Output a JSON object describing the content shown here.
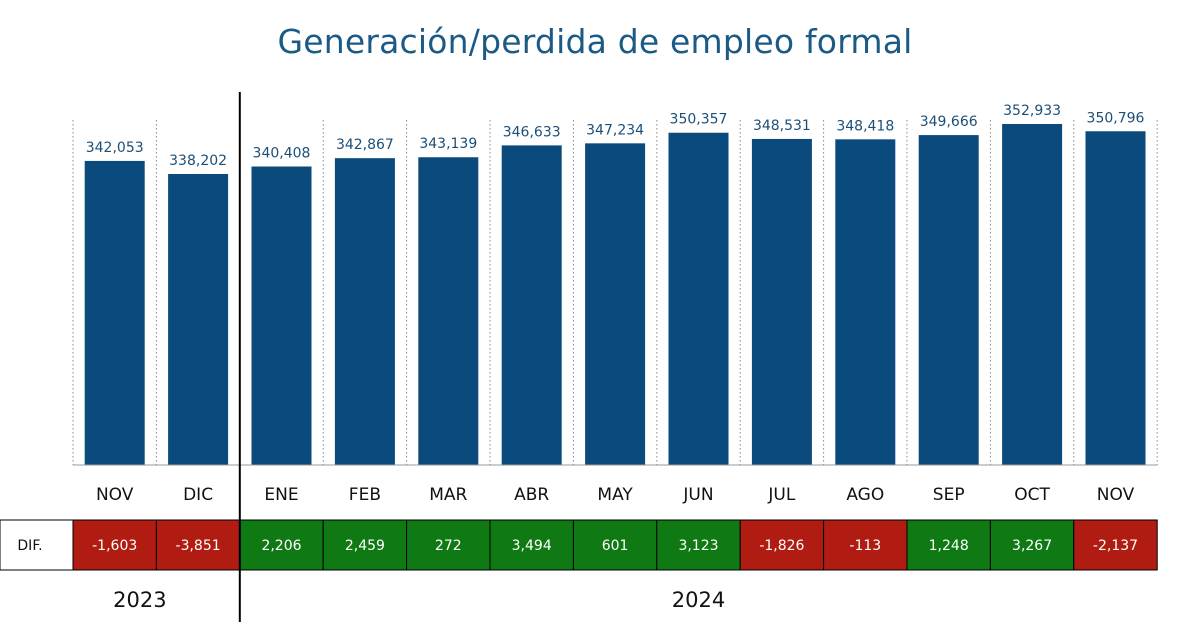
{
  "title": "Generación/perdida de empleo formal",
  "colors": {
    "bar": "#0a4a7c",
    "positive": "#0f7a14",
    "negative": "#b01c12",
    "title": "#1c5a86"
  },
  "dif_label": "DIF.",
  "years": [
    {
      "label": "2023",
      "span": 2
    },
    {
      "label": "2024",
      "span": 11
    }
  ],
  "chart_data": {
    "type": "bar",
    "title": "Generación/perdida de empleo formal",
    "categories": [
      "NOV",
      "DIC",
      "ENE",
      "FEB",
      "MAR",
      "ABR",
      "MAY",
      "JUN",
      "JUL",
      "AGO",
      "SEP",
      "OCT",
      "NOV"
    ],
    "values": [
      342053,
      338202,
      340408,
      342867,
      343139,
      346633,
      347234,
      350357,
      348531,
      348418,
      349666,
      352933,
      350796
    ],
    "value_labels": [
      "342,053",
      "338,202",
      "340,408",
      "342,867",
      "343,139",
      "346,633",
      "347,234",
      "350,357",
      "348,531",
      "348,418",
      "349,666",
      "352,933",
      "350,796"
    ],
    "dif_values": [
      -1603,
      -3851,
      2206,
      2459,
      272,
      3494,
      601,
      3123,
      -1826,
      -113,
      1248,
      3267,
      -2137
    ],
    "dif_labels": [
      "-1,603",
      "-3,851",
      "2,206",
      "2,459",
      "272",
      "3,494",
      "601",
      "3,123",
      "-1,826",
      "-113",
      "1,248",
      "3,267",
      "-2,137"
    ],
    "ylim": [
      0,
      360000
    ],
    "grid": false,
    "legend": "none"
  }
}
